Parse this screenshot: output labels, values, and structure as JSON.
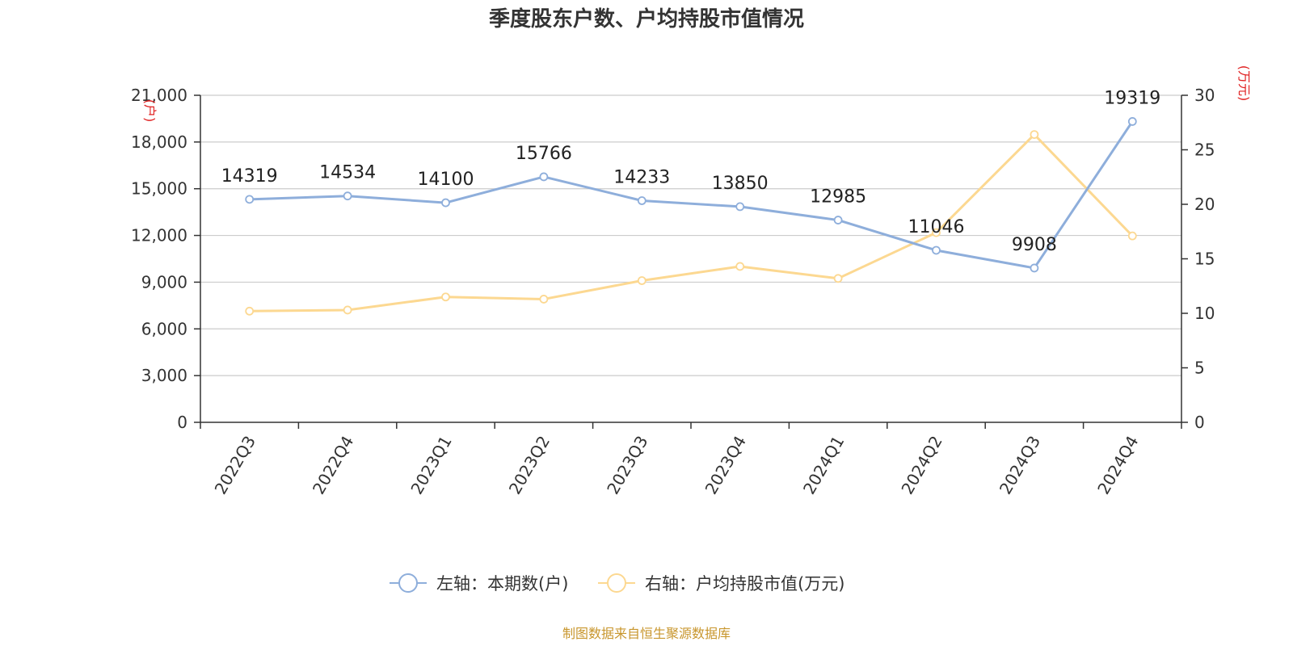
{
  "chart_data": {
    "type": "line",
    "title": "季度股东户数、户均持股市值情况",
    "categories": [
      "2022Q3",
      "2022Q4",
      "2023Q1",
      "2023Q2",
      "2023Q3",
      "2023Q4",
      "2024Q1",
      "2024Q2",
      "2024Q3",
      "2024Q4"
    ],
    "series": [
      {
        "name": "左轴：本期数(户)",
        "axis": "left",
        "color": "#8eaedb",
        "values": [
          14319,
          14534,
          14100,
          15766,
          14233,
          13850,
          12985,
          11046,
          9908,
          19319
        ],
        "labels": [
          "14319",
          "14534",
          "14100",
          "15766",
          "14233",
          "13850",
          "12985",
          "11046",
          "9908",
          "19319"
        ]
      },
      {
        "name": "右轴：户均持股市值(万元)",
        "axis": "right",
        "color": "#fcd891",
        "values": [
          10.2,
          10.3,
          11.5,
          11.3,
          13.0,
          14.3,
          13.2,
          17.4,
          26.4,
          17.1
        ]
      }
    ],
    "left_axis": {
      "unit": "(户)",
      "ylim": [
        0,
        21000
      ],
      "ticks": [
        0,
        3000,
        6000,
        9000,
        12000,
        15000,
        18000,
        21000
      ],
      "tick_labels": [
        "0",
        "3,000",
        "6,000",
        "9,000",
        "12,000",
        "15,000",
        "18,000",
        "21,000"
      ]
    },
    "right_axis": {
      "unit": "(万元)",
      "ylim": [
        0,
        30
      ],
      "ticks": [
        0,
        5,
        10,
        15,
        20,
        25,
        30
      ],
      "tick_labels": [
        "0",
        "5",
        "10",
        "15",
        "20",
        "25",
        "30"
      ]
    },
    "grid": true,
    "legend_position": "bottom-center"
  },
  "source": "制图数据来自恒生聚源数据库"
}
